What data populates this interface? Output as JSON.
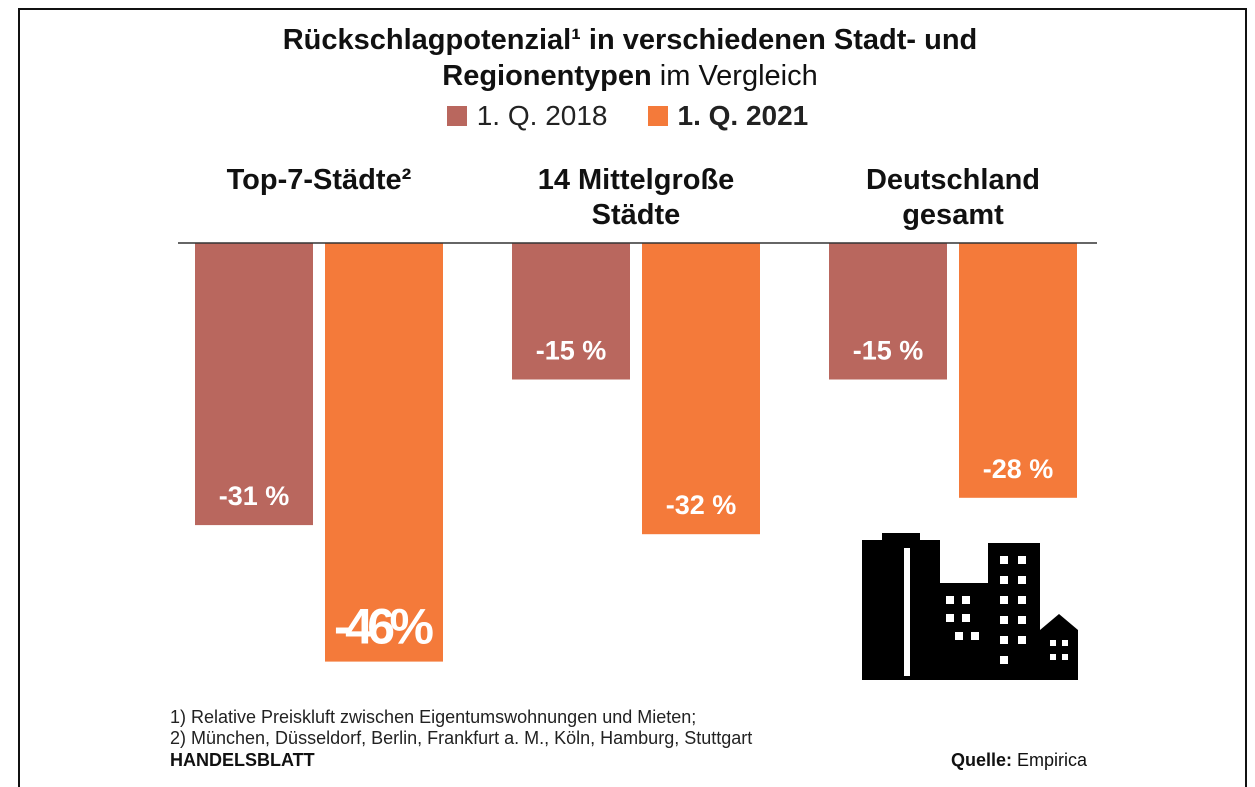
{
  "chart_data": {
    "type": "bar",
    "title": "Rückschlagpotenzial¹ in verschiedenen Stadt- und Regionentypen",
    "subtitle": "im Vergleich",
    "categories": [
      "Top-7-Städte²",
      "14 Mittelgroße Städte",
      "Deutschland gesamt"
    ],
    "series": [
      {
        "name": "1. Q. 2018",
        "color": "#b9675e",
        "values": [
          -31,
          -15,
          -15
        ],
        "value_labels": [
          "-31 %",
          "-15 %",
          "-15 %"
        ]
      },
      {
        "name": "1. Q. 2021",
        "color": "#f47a3a",
        "values": [
          -46,
          -32,
          -28
        ],
        "value_labels": [
          "-46%",
          "-32 %",
          "-28 %"
        ]
      }
    ],
    "ylim": [
      -50,
      0
    ],
    "notes": [
      "1) Relative Preiskluft zwischen Eigentumswohnungen und Mieten;",
      "2) München, Düsseldorf, Berlin, Frankfurt a. M., Köln, Hamburg, Stuttgart"
    ],
    "publisher": "HANDELSBLATT",
    "source_label": "Quelle:",
    "source": "Empirica"
  }
}
